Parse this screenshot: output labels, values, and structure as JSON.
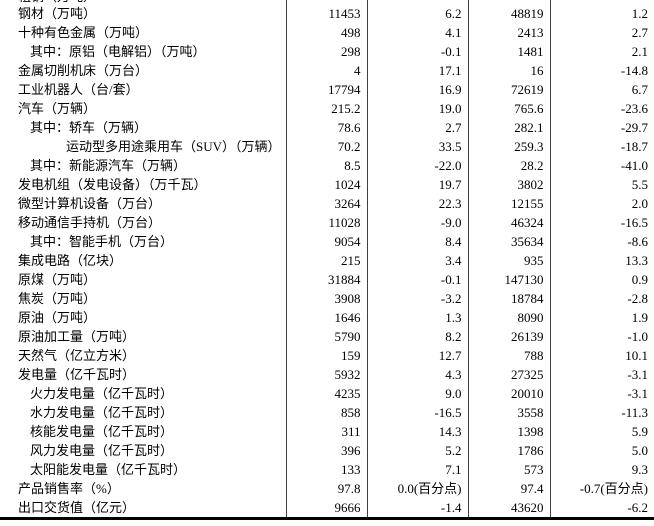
{
  "page": {
    "background": "#ffffff",
    "text_color": "#000000",
    "grid_color": "#404040",
    "bottom_rule_color": "#000000"
  },
  "table": {
    "partial_top_row": {
      "label": "粗钢（万吨）",
      "indent": 0,
      "values": [
        "",
        "",
        "",
        ""
      ]
    },
    "rows": [
      {
        "label": "钢材（万吨）",
        "indent": 0,
        "values": [
          "11453",
          "6.2",
          "48819",
          "1.2"
        ]
      },
      {
        "label": "十种有色金属（万吨）",
        "indent": 0,
        "values": [
          "498",
          "4.1",
          "2413",
          "2.7"
        ]
      },
      {
        "label": "其中：原铝（电解铝）（万吨）",
        "indent": 1,
        "values": [
          "298",
          "-0.1",
          "1481",
          "2.1"
        ]
      },
      {
        "label": "金属切削机床（万台）",
        "indent": 0,
        "values": [
          "4",
          "17.1",
          "16",
          "-14.8"
        ]
      },
      {
        "label": "工业机器人（台/套）",
        "indent": 0,
        "values": [
          "17794",
          "16.9",
          "72619",
          "6.7"
        ]
      },
      {
        "label": "汽车（万辆）",
        "indent": 0,
        "values": [
          "215.2",
          "19.0",
          "765.6",
          "-23.6"
        ]
      },
      {
        "label": "其中：轿车（万辆）",
        "indent": 1,
        "values": [
          "78.6",
          "2.7",
          "282.1",
          "-29.7"
        ]
      },
      {
        "label": "运动型多用途乘用车（SUV）（万辆）",
        "indent": 2,
        "values": [
          "70.2",
          "33.5",
          "259.3",
          "-18.7"
        ]
      },
      {
        "label": "其中：新能源汽车（万辆）",
        "indent": 1,
        "values": [
          "8.5",
          "-22.0",
          "28.2",
          "-41.0"
        ]
      },
      {
        "label": "发电机组（发电设备）（万千瓦）",
        "indent": 0,
        "values": [
          "1024",
          "19.7",
          "3802",
          "5.5"
        ]
      },
      {
        "label": "微型计算机设备（万台）",
        "indent": 0,
        "values": [
          "3264",
          "22.3",
          "12155",
          "2.0"
        ]
      },
      {
        "label": "移动通信手持机（万台）",
        "indent": 0,
        "values": [
          "11028",
          "-9.0",
          "46324",
          "-16.5"
        ]
      },
      {
        "label": "其中：智能手机（万台）",
        "indent": 1,
        "values": [
          "9054",
          "8.4",
          "35634",
          "-8.6"
        ]
      },
      {
        "label": "集成电路（亿块）",
        "indent": 0,
        "values": [
          "215",
          "3.4",
          "935",
          "13.3"
        ]
      },
      {
        "label": "原煤（万吨）",
        "indent": 0,
        "values": [
          "31884",
          "-0.1",
          "147130",
          "0.9"
        ]
      },
      {
        "label": "焦炭（万吨）",
        "indent": 0,
        "values": [
          "3908",
          "-3.2",
          "18784",
          "-2.8"
        ]
      },
      {
        "label": "原油（万吨）",
        "indent": 0,
        "values": [
          "1646",
          "1.3",
          "8090",
          "1.9"
        ]
      },
      {
        "label": "原油加工量（万吨）",
        "indent": 0,
        "values": [
          "5790",
          "8.2",
          "26139",
          "-1.0"
        ]
      },
      {
        "label": "天然气（亿立方米）",
        "indent": 0,
        "values": [
          "159",
          "12.7",
          "788",
          "10.1"
        ]
      },
      {
        "label": "发电量（亿千瓦时）",
        "indent": 0,
        "values": [
          "5932",
          "4.3",
          "27325",
          "-3.1"
        ]
      },
      {
        "label": "火力发电量（亿千瓦时）",
        "indent": 1,
        "values": [
          "4235",
          "9.0",
          "20010",
          "-3.1"
        ]
      },
      {
        "label": "水力发电量（亿千瓦时）",
        "indent": 1,
        "values": [
          "858",
          "-16.5",
          "3558",
          "-11.3"
        ]
      },
      {
        "label": "核能发电量（亿千瓦时）",
        "indent": 1,
        "values": [
          "311",
          "14.3",
          "1398",
          "5.9"
        ]
      },
      {
        "label": "风力发电量（亿千瓦时）",
        "indent": 1,
        "values": [
          "396",
          "5.2",
          "1786",
          "5.0"
        ]
      },
      {
        "label": "太阳能发电量（亿千瓦时）",
        "indent": 1,
        "values": [
          "133",
          "7.1",
          "573",
          "9.3"
        ]
      },
      {
        "label": "产品销售率（%）",
        "indent": 0,
        "values": [
          "97.8",
          "0.0(百分点)",
          "97.4",
          "-0.7(百分点)"
        ]
      },
      {
        "label": "出口交货值（亿元）",
        "indent": 0,
        "values": [
          "9666",
          "-1.4",
          "43620",
          "-6.2"
        ]
      }
    ]
  }
}
